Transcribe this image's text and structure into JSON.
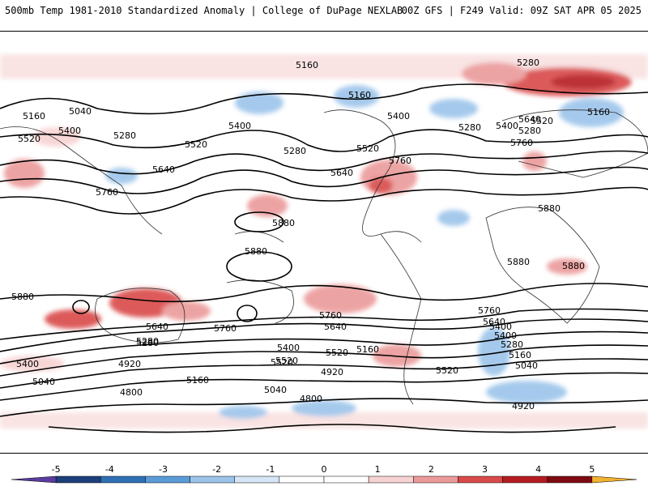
{
  "header": {
    "title": "500mb Temp 1981-2010 Standardized Anomaly | College of DuPage NEXLAB",
    "run_info": "00Z GFS | F249 Valid: 09Z SAT APR 05 2025"
  },
  "contour_labels": [
    "5160",
    "5280",
    "5040",
    "5160",
    "5400",
    "5520",
    "5280",
    "5640",
    "5760",
    "5400",
    "5520",
    "5280",
    "5400",
    "5160",
    "5280",
    "5520",
    "5640",
    "5760",
    "5160",
    "5400",
    "5280",
    "5520",
    "5640",
    "5760",
    "5880",
    "5880",
    "5880",
    "5880",
    "5880",
    "5880",
    "5640",
    "5760",
    "5400",
    "5520",
    "5040",
    "5280",
    "5400",
    "5520",
    "5640",
    "5760",
    "5160",
    "4920",
    "4800",
    "5040",
    "4920",
    "4800",
    "5160",
    "5280",
    "5400",
    "5520",
    "5640",
    "5760",
    "5160",
    "5280",
    "5400",
    "5520",
    "5040",
    "4920"
  ],
  "colorbar": {
    "ticks": [
      "-5",
      "-4",
      "-3",
      "-2",
      "-1",
      "0",
      "1",
      "2",
      "3",
      "4",
      "5"
    ],
    "colors": [
      "#5b3c9e",
      "#1d3f7a",
      "#2f6fb5",
      "#5a9bd8",
      "#9cc4ea",
      "#d6e6f6",
      "#ffffff",
      "#ffffff",
      "#f7d2d2",
      "#eb9a9a",
      "#d94a4a",
      "#b51c22",
      "#7f0a12",
      "#f2b230"
    ]
  }
}
